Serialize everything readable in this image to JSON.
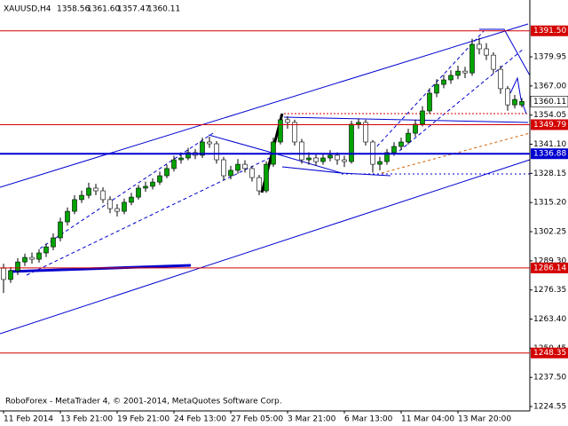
{
  "chart_data": {
    "type": "candlestick",
    "symbol": "XAUUSD,H4",
    "header_values": [
      "1358.56",
      "1361.60",
      "1357.47",
      "1360.11"
    ],
    "footer": "RoboForex - MetaTrader 4, © 2001-2014, MetaQuotes Software Corp.",
    "up_color": "#00a400",
    "down_color": "#ffffff",
    "categories": [
      "11 Feb 2014",
      null,
      null,
      null,
      null,
      null,
      null,
      null,
      "13 Feb 21:00",
      null,
      null,
      null,
      null,
      null,
      null,
      null,
      "19 Feb 21:00",
      null,
      null,
      null,
      null,
      null,
      null,
      null,
      "24 Feb 13:00",
      null,
      null,
      null,
      null,
      null,
      null,
      null,
      "27 Feb 05:00",
      null,
      null,
      null,
      null,
      null,
      null,
      null,
      "3 Mar 21:00",
      null,
      null,
      null,
      null,
      null,
      null,
      null,
      "6 Mar 13:00",
      null,
      null,
      null,
      null,
      null,
      null,
      null,
      "11 Mar 04:00",
      null,
      null,
      null,
      null,
      null,
      null,
      null,
      "13 Mar 20:00",
      null,
      null,
      null,
      null,
      null,
      null,
      null,
      null,
      null
    ],
    "open": [
      1286.0,
      1281.0,
      1284.9,
      1288.8,
      1290.8,
      1290.0,
      1292.8,
      1295.5,
      1299.5,
      1306.6,
      1311.3,
      1316.5,
      1318.4,
      1321.6,
      1320.4,
      1316.5,
      1312.5,
      1311.3,
      1315.3,
      1317.6,
      1321.6,
      1322.4,
      1324.3,
      1327.1,
      1330.3,
      1334.2,
      1335.0,
      1337.4,
      1336.2,
      1342.1,
      1341.3,
      1334.2,
      1327.1,
      1329.5,
      1332.2,
      1330.3,
      1326.3,
      1320.4,
      1332.2,
      1342.1,
      1352.0,
      1350.8,
      1342.1,
      1334.2,
      1335.0,
      1333.4,
      1335.0,
      1336.2,
      1334.2,
      1333.4,
      1350.0,
      1350.8,
      1342.1,
      1332.2,
      1333.4,
      1337.4,
      1340.1,
      1342.1,
      1346.0,
      1350.0,
      1355.9,
      1363.8,
      1367.7,
      1369.7,
      1371.7,
      1373.6,
      1372.8,
      1385.5,
      1383.5,
      1380.7,
      1374.4,
      1365.8,
      1358.6,
      1358.56
    ],
    "high": [
      1288.0,
      1286.5,
      1290.5,
      1292.5,
      1293.0,
      1294.5,
      1297.0,
      1301.5,
      1308.5,
      1313.0,
      1318.5,
      1320.5,
      1324.0,
      1323.5,
      1322.0,
      1318.0,
      1314.5,
      1317.0,
      1319.5,
      1323.0,
      1324.5,
      1326.0,
      1329.0,
      1332.0,
      1336.0,
      1337.5,
      1339.5,
      1339.0,
      1344.0,
      1344.5,
      1342.5,
      1335.5,
      1331.5,
      1334.5,
      1334.0,
      1331.5,
      1327.5,
      1333.5,
      1344.0,
      1354.0,
      1353.5,
      1352.0,
      1343.5,
      1337.5,
      1336.5,
      1337.0,
      1338.5,
      1337.5,
      1336.0,
      1351.5,
      1352.5,
      1352.0,
      1343.0,
      1335.5,
      1339.0,
      1342.0,
      1344.0,
      1348.0,
      1352.0,
      1358.0,
      1366.0,
      1370.0,
      1372.0,
      1374.0,
      1376.0,
      1375.5,
      1388.0,
      1388.5,
      1386.0,
      1382.0,
      1376.0,
      1367.0,
      1363.0,
      1361.6
    ],
    "low": [
      1275.0,
      1279.5,
      1283.0,
      1287.0,
      1288.0,
      1288.5,
      1291.0,
      1294.0,
      1298.0,
      1305.0,
      1310.0,
      1315.0,
      1317.0,
      1318.5,
      1315.0,
      1310.5,
      1309.0,
      1310.0,
      1314.0,
      1316.5,
      1320.0,
      1321.0,
      1323.0,
      1326.0,
      1329.0,
      1332.5,
      1334.0,
      1334.5,
      1335.0,
      1339.5,
      1332.5,
      1325.0,
      1325.5,
      1328.0,
      1328.5,
      1324.5,
      1318.5,
      1319.5,
      1331.0,
      1341.0,
      1348.0,
      1340.5,
      1332.5,
      1332.0,
      1331.5,
      1332.0,
      1333.5,
      1332.0,
      1331.0,
      1332.5,
      1348.0,
      1340.5,
      1328.5,
      1329.5,
      1332.0,
      1336.0,
      1338.5,
      1341.0,
      1344.5,
      1349.0,
      1354.5,
      1362.0,
      1366.0,
      1368.0,
      1370.0,
      1370.5,
      1371.5,
      1381.0,
      1378.5,
      1372.5,
      1363.5,
      1356.0,
      1357.0,
      1357.47
    ],
    "close": [
      1281.0,
      1284.9,
      1288.8,
      1290.8,
      1290.0,
      1292.8,
      1295.5,
      1299.5,
      1306.6,
      1311.3,
      1316.5,
      1318.4,
      1321.6,
      1320.4,
      1316.5,
      1312.5,
      1311.3,
      1315.3,
      1317.6,
      1321.6,
      1322.4,
      1324.3,
      1327.1,
      1330.3,
      1334.2,
      1335.0,
      1337.4,
      1336.2,
      1342.1,
      1341.3,
      1334.2,
      1327.1,
      1329.5,
      1332.2,
      1330.3,
      1326.3,
      1320.4,
      1332.2,
      1342.1,
      1352.0,
      1350.8,
      1342.1,
      1334.2,
      1335.0,
      1333.4,
      1335.0,
      1336.2,
      1334.2,
      1333.4,
      1350.0,
      1350.8,
      1342.1,
      1332.2,
      1333.4,
      1337.4,
      1340.1,
      1342.1,
      1346.0,
      1350.0,
      1355.9,
      1363.8,
      1367.7,
      1369.7,
      1371.7,
      1373.6,
      1372.8,
      1385.5,
      1383.5,
      1380.7,
      1374.4,
      1365.8,
      1358.6,
      1361.0,
      1360.11
    ],
    "ylim": [
      1222.6,
      1405.2
    ],
    "yticks": [
      1224.55,
      {
        "value": 1237.5,
        "label": "1237.50"
      },
      {
        "value": 1250.45,
        "label": "1250.45"
      },
      {
        "value": 1263.4,
        "label": "1263.40"
      },
      1276.35,
      {
        "value": 1289.3,
        "label": "1289.30"
      },
      1302.25,
      {
        "value": 1315.2,
        "label": "1315.20"
      },
      1328.15,
      {
        "value": 1341.1,
        "label": "1341.10"
      },
      1354.05,
      {
        "value": 1367.0,
        "label": "1367.00"
      },
      1379.95
    ],
    "levels": [
      {
        "value": 1391.5,
        "label": "1391.50",
        "color": "#d40000"
      },
      {
        "value": 1349.79,
        "label": "1349.79",
        "color": "#d40000"
      },
      {
        "value": 1336.88,
        "label": "1336.88",
        "color": "#0000d0"
      },
      {
        "value": 1286.14,
        "label": "1286.14",
        "color": "#d40000"
      },
      {
        "value": 1248.35,
        "label": "1248.35",
        "color": "#d40000"
      }
    ],
    "current_price": {
      "value": 1360.11,
      "label": "1360.11"
    }
  }
}
